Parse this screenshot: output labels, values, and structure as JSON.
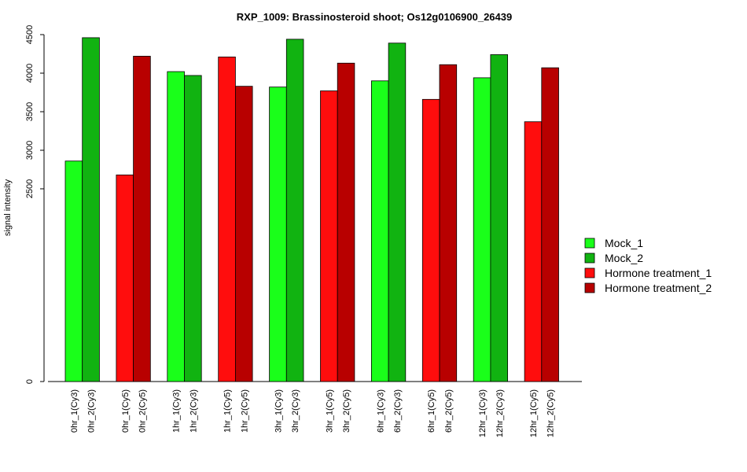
{
  "chart_data": {
    "type": "bar",
    "title": "RXP_1009: Brassinosteroid shoot; Os12g0106900_26439",
    "ylabel": "signal intensity",
    "xlabel": "",
    "ylim": [
      0,
      4500
    ],
    "yticks": [
      0,
      2500,
      3000,
      3500,
      4000,
      4500
    ],
    "grid": false,
    "legend_position": "right",
    "bars": [
      {
        "label": "0hr_1(Cy3)",
        "value": 2860,
        "series": "Mock_1"
      },
      {
        "label": "0hr_2(Cy3)",
        "value": 4460,
        "series": "Mock_2"
      },
      {
        "label": "0hr_1(Cy5)",
        "value": 2680,
        "series": "Hormone treatment_1"
      },
      {
        "label": "0hr_2(Cy5)",
        "value": 4220,
        "series": "Hormone treatment_2"
      },
      {
        "label": "1hr_1(Cy3)",
        "value": 4020,
        "series": "Mock_1"
      },
      {
        "label": "1hr_2(Cy3)",
        "value": 3970,
        "series": "Mock_2"
      },
      {
        "label": "1hr_1(Cy5)",
        "value": 4210,
        "series": "Hormone treatment_1"
      },
      {
        "label": "1hr_2(Cy5)",
        "value": 3830,
        "series": "Hormone treatment_2"
      },
      {
        "label": "3hr_1(Cy3)",
        "value": 3820,
        "series": "Mock_1"
      },
      {
        "label": "3hr_2(Cy3)",
        "value": 4440,
        "series": "Mock_2"
      },
      {
        "label": "3hr_1(Cy5)",
        "value": 3770,
        "series": "Hormone treatment_1"
      },
      {
        "label": "3hr_2(Cy5)",
        "value": 4130,
        "series": "Hormone treatment_2"
      },
      {
        "label": "6hr_1(Cy3)",
        "value": 3900,
        "series": "Mock_1"
      },
      {
        "label": "6hr_2(Cy3)",
        "value": 4390,
        "series": "Mock_2"
      },
      {
        "label": "6hr_1(Cy5)",
        "value": 3660,
        "series": "Hormone treatment_1"
      },
      {
        "label": "6hr_2(Cy5)",
        "value": 4110,
        "series": "Hormone treatment_2"
      },
      {
        "label": "12hr_1(Cy3)",
        "value": 3940,
        "series": "Mock_1"
      },
      {
        "label": "12hr_2(Cy3)",
        "value": 4240,
        "series": "Mock_2"
      },
      {
        "label": "12hr_1(Cy5)",
        "value": 3370,
        "series": "Hormone treatment_1"
      },
      {
        "label": "12hr_2(Cy5)",
        "value": 4070,
        "series": "Hormone treatment_2"
      }
    ],
    "series": [
      {
        "name": "Mock_1",
        "color": "#1aff1a"
      },
      {
        "name": "Mock_2",
        "color": "#11b311"
      },
      {
        "name": "Hormone treatment_1",
        "color": "#ff0d0d"
      },
      {
        "name": "Hormone treatment_2",
        "color": "#b80000"
      }
    ]
  }
}
